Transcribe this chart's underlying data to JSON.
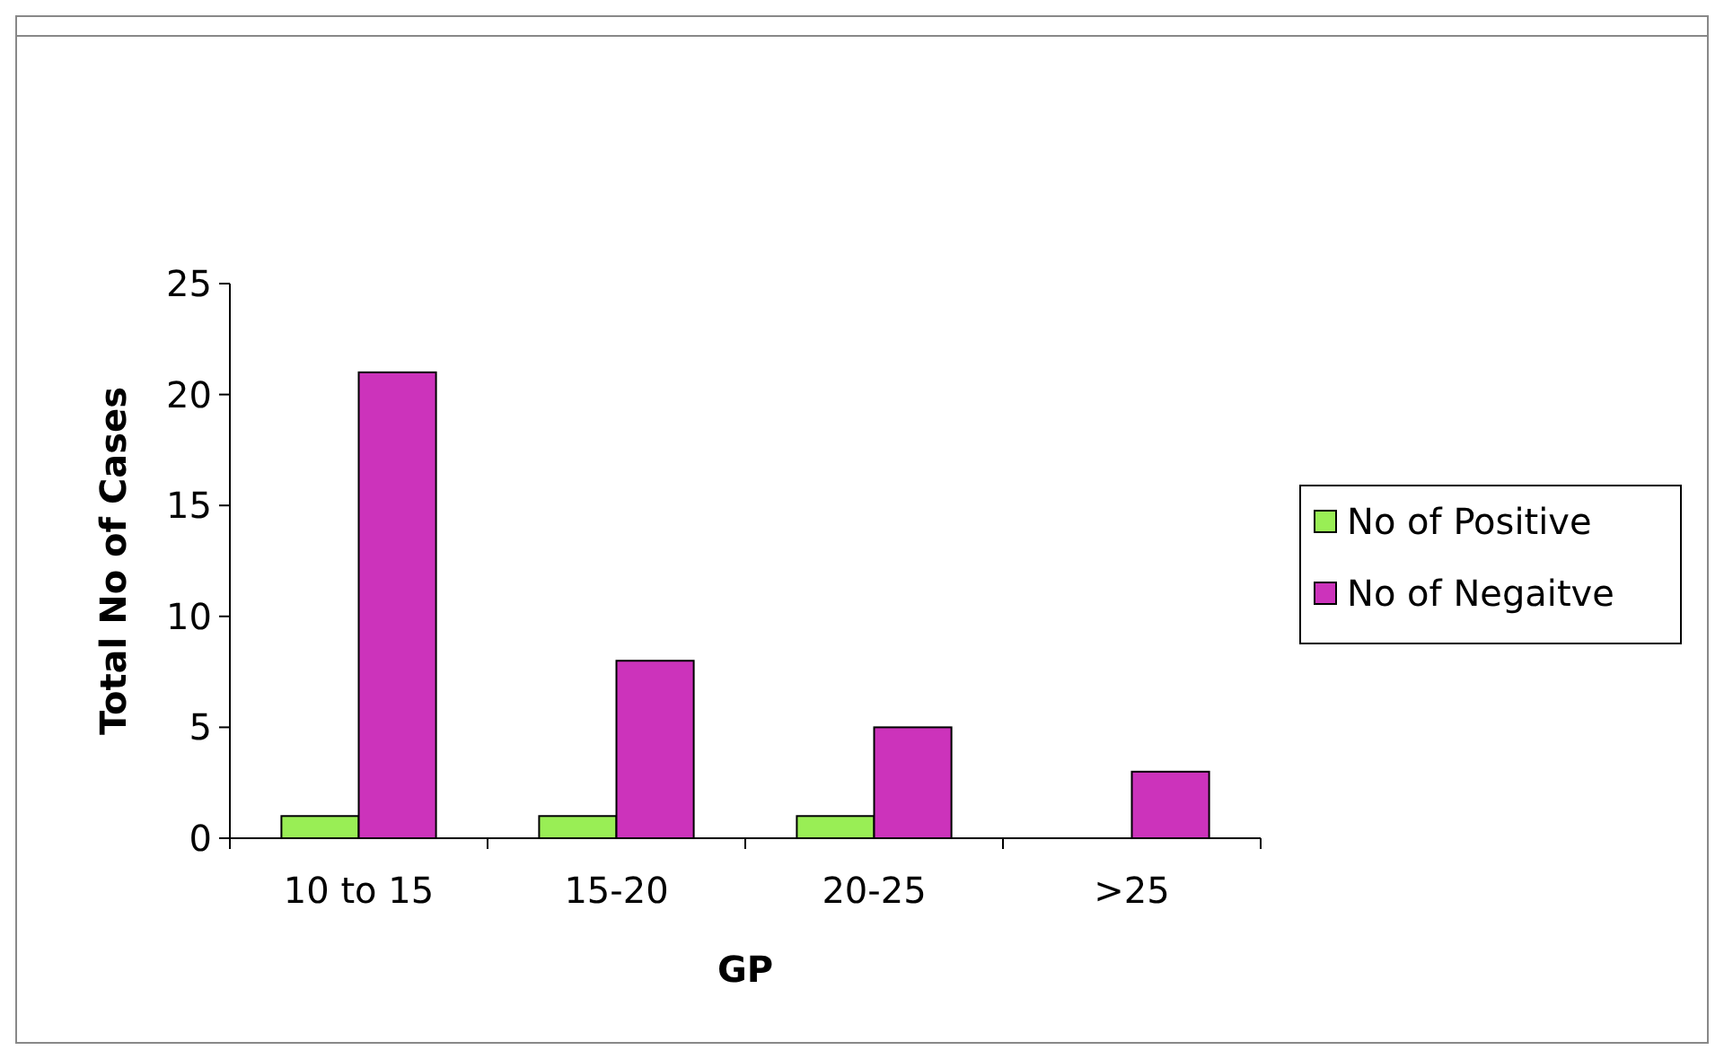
{
  "chart_data": {
    "type": "bar",
    "xlabel": "GP",
    "ylabel": "Total No of Cases",
    "categories": [
      "10 to 15",
      "15-20",
      "20-25",
      ">25"
    ],
    "series": [
      {
        "name": "No of Positive",
        "color": "#99ee55",
        "values": [
          1,
          1,
          1,
          0
        ]
      },
      {
        "name": "No of Negaitve",
        "color": "#cc33bb",
        "values": [
          21,
          8,
          5,
          3
        ]
      }
    ],
    "ylim": [
      0,
      25
    ],
    "yticks": [
      0,
      5,
      10,
      15,
      20,
      25
    ],
    "grid": false,
    "legend": "right"
  }
}
